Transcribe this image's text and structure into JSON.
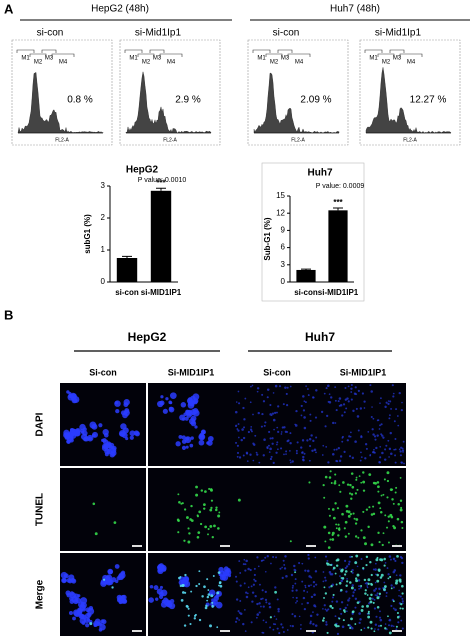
{
  "panel_a": {
    "label": "A",
    "groups": [
      {
        "title": "HepG2 (48h)",
        "panels": [
          {
            "label": "si-con",
            "percent": "0.8 %"
          },
          {
            "label": "si-Mid1Ip1",
            "percent": "2.9 %"
          }
        ]
      },
      {
        "title": "Huh7 (48h)",
        "panels": [
          {
            "label": "si-con",
            "percent": "2.09 %"
          },
          {
            "label": "si-Mid1Ip1",
            "percent": "12.27 %"
          }
        ]
      }
    ],
    "gates": [
      "M1",
      "M2",
      "M3",
      "M4"
    ],
    "x_axis": "FL2-A"
  },
  "chart_data": [
    {
      "type": "bar",
      "title": "HepG2",
      "subtitle": "P value: 0.0010",
      "y_label": "subG1 (%)",
      "categories": [
        "si-con",
        "si-MID1IP1"
      ],
      "values": [
        0.75,
        2.85
      ],
      "errors": [
        0.05,
        0.08
      ],
      "annotation": "***",
      "color": "#000000",
      "ylim": [
        0,
        3
      ],
      "yticks": [
        0,
        1,
        2,
        3
      ]
    },
    {
      "type": "bar",
      "title": "Huh7",
      "subtitle": "P value: 0.0009",
      "y_label": "Sub-G1 (%)",
      "categories": [
        "si-con",
        "si-MID1IP1"
      ],
      "values": [
        2.1,
        12.5
      ],
      "errors": [
        0.15,
        0.4
      ],
      "annotation": "***",
      "color": "#000000",
      "ylim": [
        0,
        15
      ],
      "yticks": [
        0,
        3,
        6,
        9,
        12,
        15
      ]
    }
  ],
  "panel_b": {
    "label": "B",
    "groups": [
      {
        "title": "HepG2",
        "columns": [
          "Si-con",
          "Si-MID1IP1"
        ]
      },
      {
        "title": "Huh7",
        "columns": [
          "Si-con",
          "Si-MID1IP1"
        ]
      }
    ],
    "rows": [
      "DAPI",
      "TUNEL",
      "Merge"
    ]
  }
}
